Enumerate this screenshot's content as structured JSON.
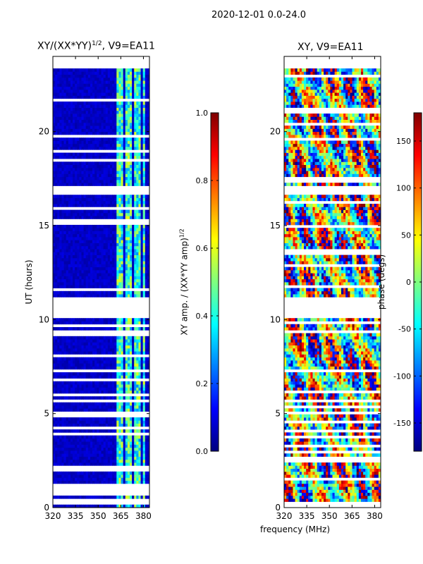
{
  "figure": {
    "suptitle": "2020-12-01 0.0-24.0",
    "xlabel": "frequency (MHz)"
  },
  "colors": {
    "jet": [
      "#00007f",
      "#0000ff",
      "#007fff",
      "#00ffff",
      "#7fff7f",
      "#ffff00",
      "#ff7f00",
      "#ff0000",
      "#7f0000"
    ],
    "axes_border": "#000000",
    "background": "#ffffff"
  },
  "chart_data": [
    {
      "type": "heatmap",
      "title": "XY/(XX*YY)$^{1/2}$, V9=EA11",
      "title_main": "XY/(XX*YY)",
      "title_exp": "1/2",
      "title_suffix": ", V9=EA11",
      "xlabel": "frequency (MHz)",
      "ylabel": "UT (hours)",
      "xlim": [
        320,
        384
      ],
      "ylim": [
        0,
        24
      ],
      "xticks": [
        320,
        335,
        350,
        365,
        380
      ],
      "yticks": [
        0,
        5,
        10,
        15,
        20
      ],
      "colorbar": {
        "label": "XY amp. / (XX*YY amp)$^{1/2}$",
        "label_main": "XY amp. / (XX*YY amp)",
        "label_exp": "1/2",
        "range": [
          0.0,
          1.0
        ],
        "ticks": [
          "0.0",
          "0.2",
          "0.4",
          "0.6",
          "0.8",
          "1.0"
        ],
        "tick_values": [
          0.0,
          0.2,
          0.4,
          0.6,
          0.8,
          1.0
        ]
      },
      "gap_bands_hours": [
        [
          10.1,
          11.2
        ],
        [
          16.7,
          16.9
        ],
        [
          23.4,
          24.0
        ]
      ],
      "bright_channel_ranges_mhz": [
        [
          362,
          366
        ],
        [
          368,
          372
        ],
        [
          374,
          378
        ],
        [
          379,
          381
        ]
      ]
    },
    {
      "type": "heatmap",
      "title": "XY, V9=EA11",
      "xlabel": "frequency (MHz)",
      "ylabel": "",
      "xlim": [
        320,
        384
      ],
      "ylim": [
        0,
        24
      ],
      "xticks": [
        320,
        335,
        350,
        365,
        380
      ],
      "yticks": [
        0,
        5,
        10,
        15,
        20
      ],
      "colorbar": {
        "label": "phase (degs)",
        "range": [
          -180,
          180
        ],
        "ticks": [
          "-150",
          "-100",
          "-50",
          "0",
          "50",
          "100",
          "150"
        ],
        "tick_values": [
          -150,
          -100,
          -50,
          0,
          50,
          100,
          150
        ]
      },
      "gap_bands_hours": [
        [
          10.1,
          11.2
        ],
        [
          16.7,
          16.9
        ],
        [
          23.4,
          24.0
        ]
      ]
    }
  ]
}
